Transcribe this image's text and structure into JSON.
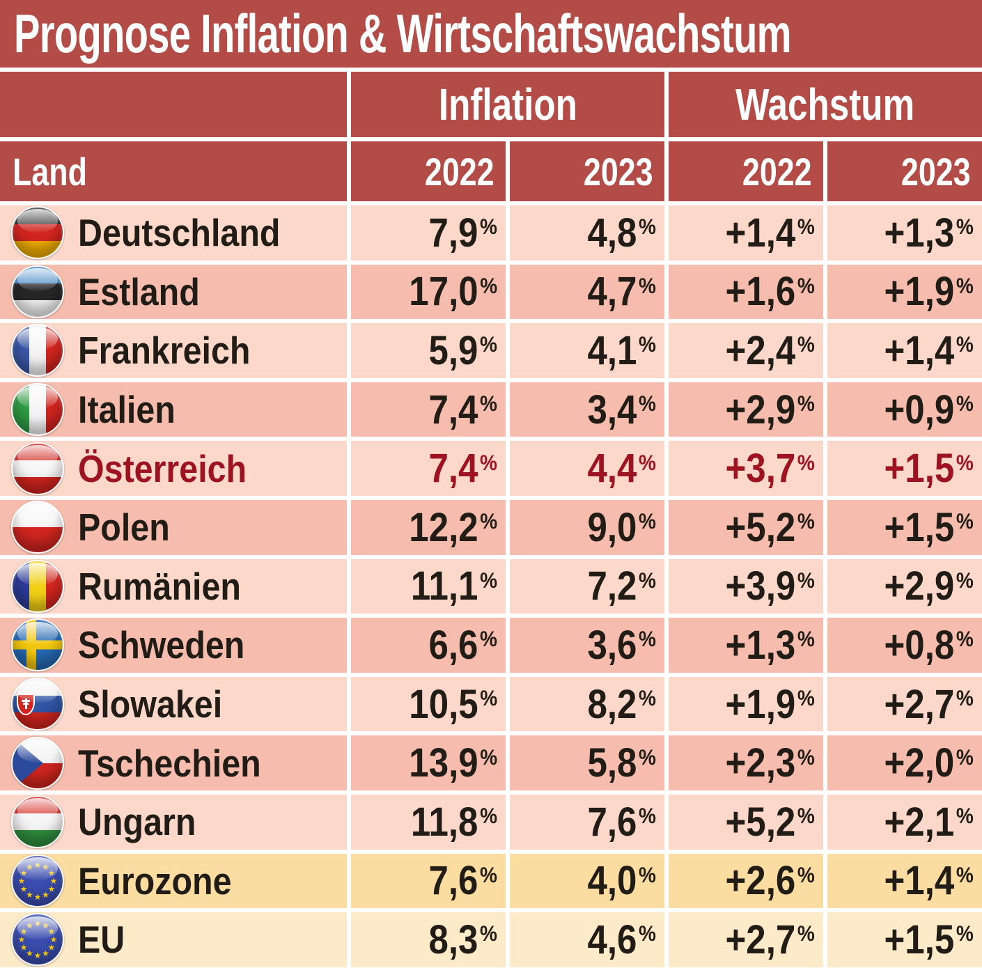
{
  "title": "Prognose Inflation & Wirtschaftswachstum",
  "percent_sign": "%",
  "colors": {
    "header_red": "#b34b46",
    "row_light_pink": "#fcd8ca",
    "row_dark_pink": "#f6bdae",
    "row_eurozone": "#fbdda2",
    "row_eu": "#fdeac8",
    "highlight_text": "#9d1322",
    "body_text": "#221c16",
    "divider": "#ffffff"
  },
  "table": {
    "group_headers": [
      "Inflation",
      "Wachstum"
    ],
    "column_headers": [
      "Land",
      "2022",
      "2023",
      "2022",
      "2023"
    ],
    "rows": [
      {
        "id": "deutschland",
        "country": "Deutschland",
        "variant": "light",
        "highlight": false,
        "values": [
          "7,9",
          "4,8",
          "+1,4",
          "+1,3"
        ],
        "flag": {
          "type": "h",
          "colors": [
            "#2b2b2b",
            "#d2251f",
            "#efac00"
          ]
        }
      },
      {
        "id": "estland",
        "country": "Estland",
        "variant": "dark",
        "highlight": false,
        "values": [
          "17,0",
          "4,7",
          "+1,6",
          "+1,9"
        ],
        "flag": {
          "type": "h",
          "colors": [
            "#3f85c5",
            "#262626",
            "#f2f2f2"
          ]
        }
      },
      {
        "id": "frankreich",
        "country": "Frankreich",
        "variant": "light",
        "highlight": false,
        "values": [
          "5,9",
          "4,1",
          "+2,4",
          "+1,4"
        ],
        "flag": {
          "type": "v",
          "colors": [
            "#3a57a6",
            "#f4f4f4",
            "#d2251f"
          ]
        }
      },
      {
        "id": "italien",
        "country": "Italien",
        "variant": "dark",
        "highlight": false,
        "values": [
          "7,4",
          "3,4",
          "+2,9",
          "+0,9"
        ],
        "flag": {
          "type": "v",
          "colors": [
            "#2f9a43",
            "#f4f4f4",
            "#d2251f"
          ]
        }
      },
      {
        "id": "oesterreich",
        "country": "Österreich",
        "variant": "light",
        "highlight": true,
        "values": [
          "7,4",
          "4,4",
          "+3,7",
          "+1,5"
        ],
        "flag": {
          "type": "h",
          "colors": [
            "#d2251f",
            "#f6f6f6",
            "#d2251f"
          ]
        }
      },
      {
        "id": "polen",
        "country": "Polen",
        "variant": "dark",
        "highlight": false,
        "values": [
          "12,2",
          "9,0",
          "+5,2",
          "+1,5"
        ],
        "flag": {
          "type": "h",
          "colors": [
            "#f5f5f5",
            "#d2251f"
          ]
        }
      },
      {
        "id": "rumaenien",
        "country": "Rumänien",
        "variant": "light",
        "highlight": false,
        "values": [
          "11,1",
          "7,2",
          "+3,9",
          "+2,9"
        ],
        "flag": {
          "type": "v",
          "colors": [
            "#2c3a96",
            "#f2cf16",
            "#d2251f"
          ]
        }
      },
      {
        "id": "schweden",
        "country": "Schweden",
        "variant": "dark",
        "highlight": false,
        "values": [
          "6,6",
          "3,6",
          "+1,3",
          "+0,8"
        ],
        "flag": {
          "type": "cross",
          "colors": [
            "#2569b3",
            "#f2c50e"
          ]
        }
      },
      {
        "id": "slowakei",
        "country": "Slowakei",
        "variant": "light",
        "highlight": false,
        "values": [
          "10,5",
          "8,2",
          "+1,9",
          "+2,7"
        ],
        "flag": {
          "type": "crest",
          "colors": [
            "#f2f2f2",
            "#3155a5",
            "#d2251f"
          ]
        }
      },
      {
        "id": "tschechien",
        "country": "Tschechien",
        "variant": "dark",
        "highlight": false,
        "values": [
          "13,9",
          "5,8",
          "+2,3",
          "+2,0"
        ],
        "flag": {
          "type": "wedge",
          "colors": [
            "#f2f2f2",
            "#d2251f",
            "#2b4a9b"
          ]
        }
      },
      {
        "id": "ungarn",
        "country": "Ungarn",
        "variant": "light",
        "highlight": false,
        "values": [
          "11,8",
          "7,6",
          "+5,2",
          "+2,1"
        ],
        "flag": {
          "type": "h",
          "colors": [
            "#d2251f",
            "#f4f4f4",
            "#2f8f3f"
          ]
        }
      },
      {
        "id": "eurozone",
        "country": "Eurozone",
        "variant": "euro1",
        "highlight": false,
        "values": [
          "7,6",
          "4,0",
          "+2,6",
          "+1,4"
        ],
        "flag": {
          "type": "eu",
          "colors": [
            "#3a4cae",
            "#f2c50e"
          ]
        }
      },
      {
        "id": "eu",
        "country": "EU",
        "variant": "euro2",
        "highlight": false,
        "values": [
          "8,3",
          "4,6",
          "+2,7",
          "+1,5"
        ],
        "flag": {
          "type": "eu",
          "colors": [
            "#3a4cae",
            "#f2c50e"
          ]
        }
      }
    ]
  },
  "chart_data": {
    "type": "table",
    "title": "Prognose Inflation & Wirtschaftswachstum",
    "column_groups": [
      "Inflation",
      "Wachstum"
    ],
    "columns": [
      "Land",
      "Inflation 2022 (%)",
      "Inflation 2023 (%)",
      "Wachstum 2022 (%)",
      "Wachstum 2023 (%)"
    ],
    "rows": [
      [
        "Deutschland",
        7.9,
        4.8,
        1.4,
        1.3
      ],
      [
        "Estland",
        17.0,
        4.7,
        1.6,
        1.9
      ],
      [
        "Frankreich",
        5.9,
        4.1,
        2.4,
        1.4
      ],
      [
        "Italien",
        7.4,
        3.4,
        2.9,
        0.9
      ],
      [
        "Österreich",
        7.4,
        4.4,
        3.7,
        1.5
      ],
      [
        "Polen",
        12.2,
        9.0,
        5.2,
        1.5
      ],
      [
        "Rumänien",
        11.1,
        7.2,
        3.9,
        2.9
      ],
      [
        "Schweden",
        6.6,
        3.6,
        1.3,
        0.8
      ],
      [
        "Slowakei",
        10.5,
        8.2,
        1.9,
        2.7
      ],
      [
        "Tschechien",
        13.9,
        5.8,
        2.3,
        2.0
      ],
      [
        "Ungarn",
        11.8,
        7.6,
        5.2,
        2.1
      ],
      [
        "Eurozone",
        7.6,
        4.0,
        2.6,
        1.4
      ],
      [
        "EU",
        8.3,
        4.6,
        2.7,
        1.5
      ]
    ],
    "notes": "Row Österreich is highlighted in dark red; Eurozone and EU rows have yellow backgrounds."
  }
}
